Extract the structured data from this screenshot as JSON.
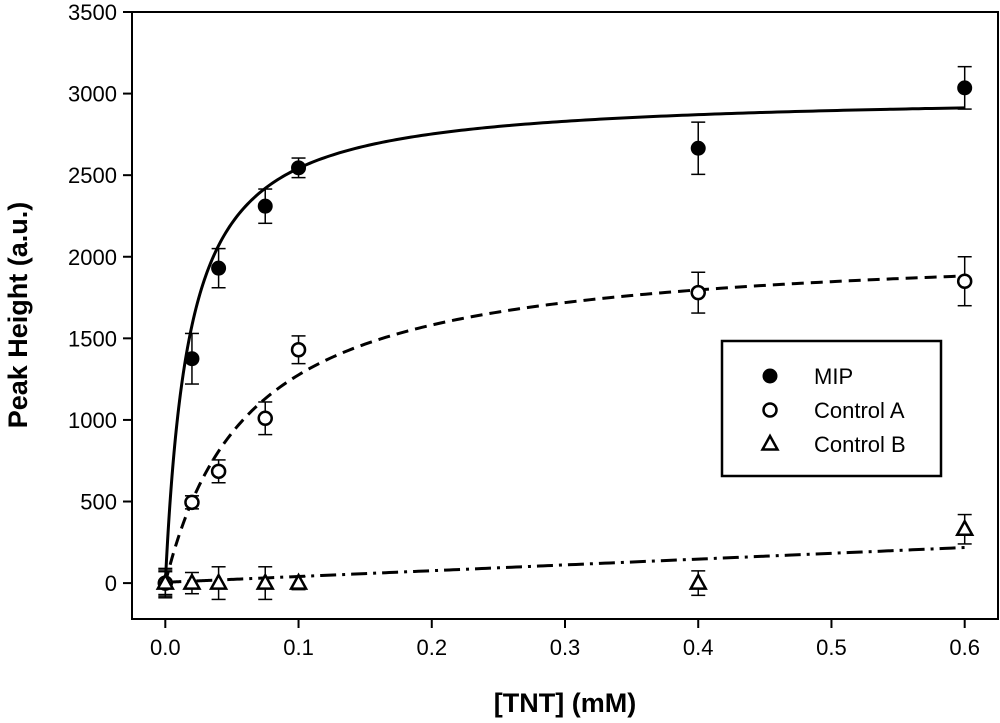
{
  "chart_data": {
    "type": "scatter",
    "title": "",
    "xlabel": "[TNT] (mM)",
    "ylabel": "Peak Height (a.u.)",
    "xlim": [
      -0.025,
      0.625
    ],
    "ylim": [
      -220,
      3500
    ],
    "xticks": [
      0.0,
      0.1,
      0.2,
      0.3,
      0.4,
      0.5,
      0.6
    ],
    "xtick_labels": [
      "0.0",
      "0.1",
      "0.2",
      "0.3",
      "0.4",
      "0.5",
      "0.6"
    ],
    "yticks": [
      0,
      500,
      1000,
      1500,
      2000,
      2500,
      3000,
      3500
    ],
    "ytick_labels": [
      "0",
      "500",
      "1000",
      "1500",
      "2000",
      "2500",
      "3000",
      "3500"
    ],
    "grid": false,
    "legend_position": "right",
    "series": [
      {
        "name": "MIP",
        "marker": "filled-circle",
        "x": [
          0.0,
          0.02,
          0.04,
          0.075,
          0.1,
          0.4,
          0.6
        ],
        "y": [
          0,
          1375,
          1930,
          2310,
          2545,
          2665,
          3035
        ],
        "err": [
          80,
          155,
          120,
          105,
          60,
          160,
          130
        ],
        "fit": {
          "style": "solid",
          "model": "langmuir",
          "bmax": 3000,
          "kd": 0.018
        }
      },
      {
        "name": "Control A",
        "marker": "open-circle",
        "x": [
          0.0,
          0.02,
          0.04,
          0.075,
          0.1,
          0.4,
          0.6
        ],
        "y": [
          0,
          495,
          685,
          1010,
          1430,
          1780,
          1850
        ],
        "err": [
          70,
          40,
          70,
          100,
          85,
          125,
          150
        ],
        "fit": {
          "style": "dashed",
          "model": "langmuir",
          "bmax": 2080,
          "kd": 0.063
        }
      },
      {
        "name": "Control B",
        "marker": "open-triangle",
        "x": [
          0.0,
          0.02,
          0.04,
          0.075,
          0.1,
          0.4,
          0.6
        ],
        "y": [
          0,
          0,
          0,
          0,
          0,
          0,
          330
        ],
        "err": [
          90,
          65,
          100,
          100,
          40,
          75,
          90
        ],
        "fit": {
          "style": "dash-dot",
          "model": "linear",
          "intercept": 5,
          "slope": 355
        }
      }
    ]
  }
}
